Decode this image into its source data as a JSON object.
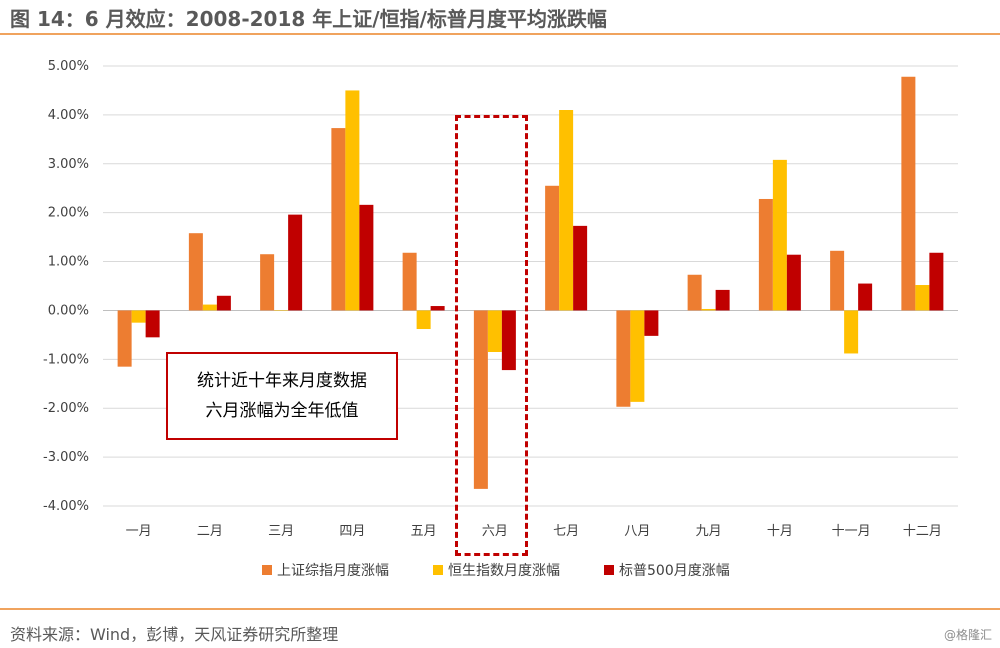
{
  "header": {
    "title": "图 14：6 月效应：2008-2018 年上证/恒指/标普月度平均涨跌幅"
  },
  "footer": {
    "source": "资料来源：Wind，彭博，天风证券研究所整理",
    "watermark": "@格隆汇"
  },
  "annotation": {
    "line1": "统计近十年来月度数据",
    "line2": "六月涨幅为全年低值"
  },
  "colors": {
    "sh": "#ed7d31",
    "hs": "#ffc000",
    "sp": "#c00000",
    "accent_rule": "#f0a35e",
    "grid": "#d9d9d9"
  },
  "chart_data": {
    "type": "bar",
    "title": "",
    "xlabel": "",
    "ylabel": "",
    "ylim": [
      -4.0,
      5.0
    ],
    "yticks": [
      5,
      4,
      3,
      2,
      1,
      0,
      -1,
      -2,
      -3,
      -4
    ],
    "ytick_labels": [
      "5.00%",
      "4.00%",
      "3.00%",
      "2.00%",
      "1.00%",
      "0.00%",
      "-1.00%",
      "-2.00%",
      "-3.00%",
      "-4.00%"
    ],
    "grid": true,
    "legend_position": "bottom",
    "categories": [
      "一月",
      "二月",
      "三月",
      "四月",
      "五月",
      "六月",
      "七月",
      "八月",
      "九月",
      "十月",
      "十一月",
      "十二月"
    ],
    "series": [
      {
        "name": "上证综指月度涨幅",
        "color": "#ed7d31",
        "values": [
          -1.15,
          1.58,
          1.15,
          3.73,
          1.18,
          -3.65,
          2.55,
          -1.97,
          0.73,
          2.28,
          1.22,
          4.78
        ]
      },
      {
        "name": "恒生指数月度涨幅",
        "color": "#ffc000",
        "values": [
          -0.25,
          0.12,
          0.0,
          4.5,
          -0.38,
          -0.85,
          4.1,
          -1.87,
          0.03,
          3.08,
          -0.88,
          0.52
        ]
      },
      {
        "name": "标普500月度涨幅",
        "color": "#c00000",
        "values": [
          -0.55,
          0.3,
          1.96,
          2.16,
          0.09,
          -1.22,
          1.73,
          -0.52,
          0.42,
          1.14,
          0.55,
          1.18
        ]
      }
    ]
  }
}
